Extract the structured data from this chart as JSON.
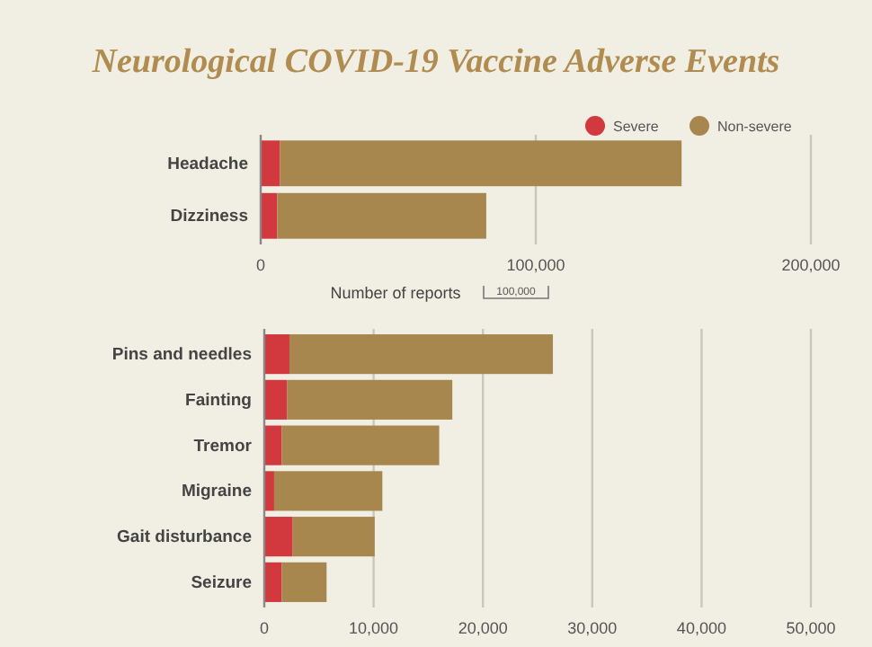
{
  "chart_data": [
    {
      "type": "bar",
      "orientation": "horizontal",
      "stacked": true,
      "title": "Neurological COVID-19 Vaccine Adverse Events",
      "categories": [
        "Headache",
        "Dizziness"
      ],
      "series": [
        {
          "name": "Severe",
          "color": "#d1393f",
          "values": [
            7000,
            6000
          ]
        },
        {
          "name": "Non-severe",
          "color": "#a8874f",
          "values": [
            146000,
            76000
          ]
        }
      ],
      "xlim": [
        0,
        200000
      ],
      "xticks": [
        {
          "value": 0,
          "label": "0"
        },
        {
          "value": 100000,
          "label": "100,000"
        },
        {
          "value": 200000,
          "label": "200,000"
        }
      ],
      "grid": "x",
      "legend": "top right",
      "xlabel": "Number of reports",
      "annotations": [
        "100,000"
      ]
    },
    {
      "type": "bar",
      "orientation": "horizontal",
      "stacked": true,
      "categories": [
        "Pins and needles",
        "Fainting",
        "Tremor",
        "Migraine",
        "Gait disturbance",
        "Seizure"
      ],
      "series": [
        {
          "color": "#d1393f",
          "values": [
            2300,
            2100,
            1600,
            900,
            2600,
            1600
          ]
        },
        {
          "color": "#a8874f",
          "values": [
            24100,
            15100,
            14400,
            9900,
            7500,
            4100
          ]
        }
      ],
      "xlim": [
        0,
        50000
      ],
      "xticks": [
        {
          "value": 0,
          "label": "0"
        },
        {
          "value": 10000,
          "label": "10,000"
        },
        {
          "value": 20000,
          "label": "20,000"
        },
        {
          "value": 30000,
          "label": "30,000"
        },
        {
          "value": 40000,
          "label": "40,000"
        },
        {
          "value": 50000,
          "label": "50,000"
        }
      ],
      "grid": "x"
    }
  ]
}
